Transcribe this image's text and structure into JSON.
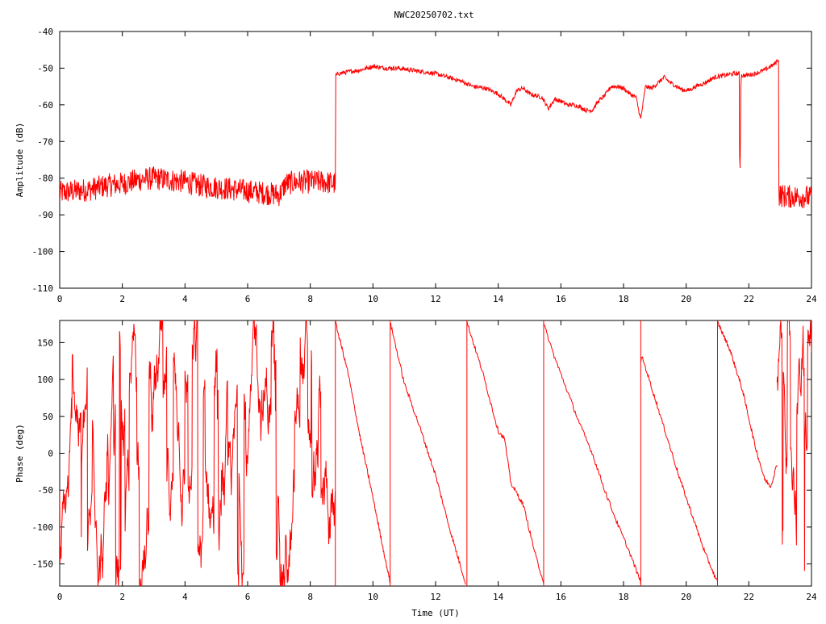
{
  "title": "NWC20250702.txt",
  "chart_data": [
    {
      "type": "line",
      "title": "NWC20250702.txt",
      "xlabel": "",
      "ylabel": "Amplitude (dB)",
      "xlim": [
        0,
        24
      ],
      "ylim": [
        -110,
        -40
      ],
      "xticks": [
        "0",
        "2",
        "4",
        "6",
        "8",
        "10",
        "12",
        "14",
        "16",
        "18",
        "20",
        "22",
        "24"
      ],
      "yticks": [
        "-40",
        "-50",
        "-60",
        "-70",
        "-80",
        "-90",
        "-100",
        "-110"
      ],
      "grid": false,
      "color": "#ff0000",
      "series": [
        {
          "x": [
            0,
            0.5,
            1,
            1.5,
            2,
            2.5,
            3,
            3.5,
            4,
            4.5,
            5,
            5.5,
            6,
            6.5,
            7,
            7.1,
            7.2,
            7.6,
            8,
            8.4,
            8.8,
            8.81,
            8.9,
            9.2,
            9.6,
            10,
            10.4,
            10.8,
            11.2,
            11.6,
            12,
            12.4,
            12.8,
            13.2,
            13.6,
            14,
            14.2,
            14.4,
            14.6,
            14.8,
            15,
            15.2,
            15.4,
            15.6,
            15.8,
            16,
            16.2,
            16.4,
            16.6,
            16.8,
            17,
            17.2,
            17.4,
            17.6,
            17.8,
            18,
            18.2,
            18.4,
            18.55,
            18.7,
            18.9,
            19.1,
            19.3,
            19.5,
            19.7,
            19.9,
            20.1,
            20.3,
            20.6,
            20.9,
            21.2,
            21.5,
            21.7,
            21.71,
            21.75,
            21.9,
            22.2,
            22.5,
            22.8,
            22.95,
            22.96,
            23.2,
            23.5,
            23.8,
            24
          ],
          "y": [
            -84,
            -83.5,
            -83,
            -82,
            -81.5,
            -80.5,
            -80,
            -80.5,
            -81,
            -82,
            -82.5,
            -83,
            -83.5,
            -84,
            -84.5,
            -83.5,
            -81.5,
            -81,
            -81,
            -81,
            -81.5,
            -52,
            -51.5,
            -51,
            -50.5,
            -49.5,
            -50,
            -50,
            -50.5,
            -51,
            -51.5,
            -52.5,
            -53.5,
            -55,
            -55.5,
            -57,
            -58.5,
            -60,
            -56,
            -55.5,
            -57,
            -57.5,
            -58,
            -61,
            -58.5,
            -59,
            -60,
            -60,
            -60.5,
            -61.5,
            -61.5,
            -59,
            -57.5,
            -55,
            -55,
            -55.5,
            -57,
            -58,
            -64,
            -55,
            -55.5,
            -54,
            -52.5,
            -54,
            -55,
            -56,
            -56,
            -55,
            -54,
            -52.5,
            -52,
            -51.5,
            -51.5,
            -85,
            -52,
            -52,
            -51.5,
            -50.5,
            -49,
            -47.5,
            -84.5,
            -85,
            -85,
            -85,
            -85.5
          ]
        }
      ]
    },
    {
      "type": "line",
      "title": "",
      "xlabel": "Time (UT)",
      "ylabel": "Phase (deg)",
      "xlim": [
        0,
        24
      ],
      "ylim": [
        -180,
        180
      ],
      "xticks": [
        "0",
        "2",
        "4",
        "6",
        "8",
        "10",
        "12",
        "14",
        "16",
        "18",
        "20",
        "22",
        "24"
      ],
      "yticks": [
        "150",
        "100",
        "50",
        "0",
        "-50",
        "-100",
        "-150"
      ],
      "grid": false,
      "color": "#ff0000",
      "series": [
        {
          "segments": [
            {
              "x": [
                8.8,
                9.2,
                9.6,
                10,
                10.4,
                10.55
              ],
              "y": [
                178,
                110,
                20,
                -60,
                -145,
                -175
              ]
            },
            {
              "x": [
                10.55,
                11,
                11.5,
                12,
                12.5,
                12.95
              ],
              "y": [
                178,
                95,
                35,
                -30,
                -110,
                -175
              ]
            },
            {
              "x": [
                13.0,
                13.5,
                14,
                14.2,
                14.4,
                14.8,
                15.2,
                15.45
              ],
              "y": [
                178,
                110,
                30,
                20,
                -40,
                -70,
                -140,
                -175
              ]
            },
            {
              "x": [
                15.45,
                15.8,
                16.2,
                16.6,
                17,
                17.4,
                17.8,
                18.2,
                18.55
              ],
              "y": [
                175,
                130,
                85,
                40,
                0,
                -50,
                -95,
                -135,
                -175
              ]
            },
            {
              "x": [
                18.55,
                18.6,
                19,
                19.4,
                19.8,
                20.2,
                20.6,
                21.0
              ],
              "y": [
                125,
                130,
                75,
                20,
                -35,
                -85,
                -135,
                -175
              ]
            },
            {
              "x": [
                21.0,
                21.4,
                21.8,
                22.2,
                22.5,
                22.7,
                22.9
              ],
              "y": [
                178,
                140,
                85,
                10,
                -35,
                -45,
                -15
              ]
            }
          ],
          "noisy_ranges": [
            [
              0,
              8.8
            ],
            [
              22.9,
              24
            ]
          ]
        }
      ]
    }
  ]
}
